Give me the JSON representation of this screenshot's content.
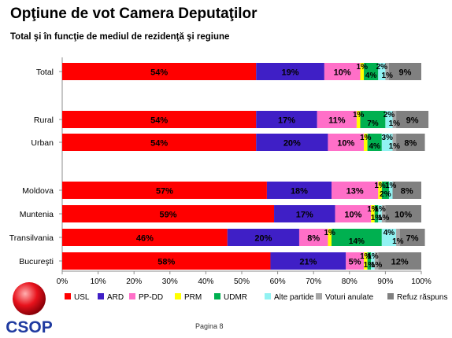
{
  "header": {
    "title": "Opţiune de vot Camera Deputaţilor",
    "subtitle": "Total şi în funcţie de mediul de rezidenţă şi regiune"
  },
  "footer": {
    "logo_text": "CSOP",
    "page_label": "Pagina 8"
  },
  "chart_data": {
    "type": "bar",
    "orientation": "horizontal",
    "stacked": true,
    "categories": [
      "Total",
      "Rural",
      "Urban",
      "Moldova",
      "Muntenia",
      "Transilvania",
      "Bucureşti"
    ],
    "series": [
      {
        "name": "USL",
        "color": "#ff0000",
        "values": [
          54,
          54,
          54,
          57,
          59,
          46,
          58
        ]
      },
      {
        "name": "ARD",
        "color": "#3f1fc6",
        "values": [
          19,
          17,
          20,
          18,
          17,
          20,
          21
        ]
      },
      {
        "name": "PP-DD",
        "color": "#ff6fc8",
        "values": [
          10,
          11,
          10,
          13,
          10,
          8,
          5
        ]
      },
      {
        "name": "PRM",
        "color": "#ffff00",
        "values": [
          1,
          1,
          1,
          1,
          1,
          1,
          1
        ]
      },
      {
        "name": "UDMR",
        "color": "#00b050",
        "values": [
          4,
          7,
          4,
          2,
          1,
          14,
          1
        ]
      },
      {
        "name": "Alte partide",
        "color": "#92f2f2",
        "values": [
          2,
          2,
          3,
          1,
          1,
          4,
          1
        ]
      },
      {
        "name": "Voturi anulate",
        "color": "#a6a6a6",
        "values": [
          1,
          1,
          1,
          0,
          1,
          1,
          1
        ]
      },
      {
        "name": "Refuz răspuns",
        "color": "#808080",
        "values": [
          9,
          9,
          8,
          8,
          10,
          7,
          12
        ]
      }
    ],
    "xlim": [
      0,
      100
    ],
    "xticks": [
      "0%",
      "10%",
      "20%",
      "30%",
      "40%",
      "50%",
      "60%",
      "70%",
      "80%",
      "90%",
      "100%"
    ],
    "value_suffix": "%",
    "legend_position": "bottom",
    "grid": false
  }
}
